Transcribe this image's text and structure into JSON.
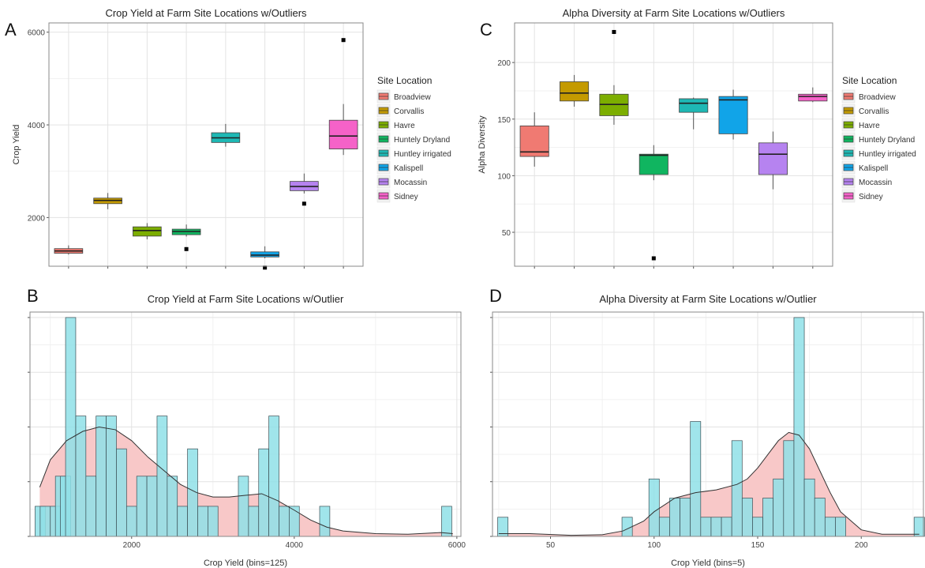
{
  "panel_labels": [
    "A",
    "C",
    "B",
    "D"
  ],
  "legend_title": "Site Location",
  "site_colors": {
    "Broadview": "#f07a72",
    "Corvallis": "#c49a00",
    "Havre": "#7cae00",
    "Huntely Dryland": "#10b560",
    "Huntley irrigated": "#1eb8b4",
    "Kalispell": "#11a4e8",
    "Mocassin": "#b683f0",
    "Sidney": "#f562c8"
  },
  "hist_fill": "#8fe0e8",
  "density_fill": "#f8c8c8",
  "chart_data": [
    {
      "id": "A",
      "type": "box",
      "title": "Crop Yield at Farm Site Locations w/Outliers",
      "xlabel": "",
      "ylabel": "Crop Yield",
      "ylim": [
        950,
        6200
      ],
      "yticks": [
        2000,
        4000,
        6000
      ],
      "grid": true,
      "legend": "right",
      "categories": [
        "Broadview",
        "Corvallis",
        "Havre",
        "Huntely Dryland",
        "Huntley irrigated",
        "Kalispell",
        "Mocassin",
        "Sidney"
      ],
      "boxes": [
        {
          "name": "Broadview",
          "whislo": 1200,
          "q1": 1230,
          "med": 1280,
          "q3": 1330,
          "whishi": 1400,
          "fliers": []
        },
        {
          "name": "Corvallis",
          "whislo": 2180,
          "q1": 2300,
          "med": 2370,
          "q3": 2420,
          "whishi": 2530,
          "fliers": []
        },
        {
          "name": "Havre",
          "whislo": 1530,
          "q1": 1600,
          "med": 1720,
          "q3": 1800,
          "whishi": 1880,
          "fliers": []
        },
        {
          "name": "Huntely Dryland",
          "whislo": 1590,
          "q1": 1630,
          "med": 1700,
          "q3": 1750,
          "whishi": 1850,
          "fliers": [
            1320
          ]
        },
        {
          "name": "Huntley irrigated",
          "whislo": 3530,
          "q1": 3620,
          "med": 3720,
          "q3": 3830,
          "whishi": 4020,
          "fliers": []
        },
        {
          "name": "Kalispell",
          "whislo": 1120,
          "q1": 1150,
          "med": 1190,
          "q3": 1260,
          "whishi": 1380,
          "fliers": [
            920
          ]
        },
        {
          "name": "Mocassin",
          "whislo": 2520,
          "q1": 2580,
          "med": 2670,
          "q3": 2780,
          "whishi": 2950,
          "fliers": [
            2300
          ]
        },
        {
          "name": "Sidney",
          "whislo": 3350,
          "q1": 3480,
          "med": 3760,
          "q3": 4100,
          "whishi": 4450,
          "fliers": [
            5830
          ]
        }
      ]
    },
    {
      "id": "C",
      "type": "box",
      "title": "Alpha Diversity at Farm Site Locations w/Outliers",
      "xlabel": "",
      "ylabel": "Alpha Diversity",
      "ylim": [
        20,
        235
      ],
      "yticks": [
        50,
        100,
        150,
        200
      ],
      "grid": true,
      "legend": "right",
      "categories": [
        "Broadview",
        "Corvallis",
        "Havre",
        "Huntely Dryland",
        "Huntley irrigated",
        "Kalispell",
        "Mocassin",
        "Sidney"
      ],
      "boxes": [
        {
          "name": "Broadview",
          "whislo": 108,
          "q1": 117,
          "med": 121,
          "q3": 144,
          "whishi": 156,
          "fliers": []
        },
        {
          "name": "Corvallis",
          "whislo": 161,
          "q1": 166,
          "med": 173,
          "q3": 183,
          "whishi": 189,
          "fliers": []
        },
        {
          "name": "Havre",
          "whislo": 145,
          "q1": 153,
          "med": 163,
          "q3": 172,
          "whishi": 180,
          "fliers": [
            227
          ]
        },
        {
          "name": "Huntely Dryland",
          "whislo": 96,
          "q1": 101,
          "med": 118,
          "q3": 119,
          "whishi": 127,
          "fliers": [
            27
          ]
        },
        {
          "name": "Huntley irrigated",
          "whislo": 141,
          "q1": 156,
          "med": 164,
          "q3": 168,
          "whishi": 169,
          "fliers": []
        },
        {
          "name": "Kalispell",
          "whislo": 132,
          "q1": 137,
          "med": 167,
          "q3": 170,
          "whishi": 176,
          "fliers": []
        },
        {
          "name": "Mocassin",
          "whislo": 88,
          "q1": 101,
          "med": 119,
          "q3": 129,
          "whishi": 139,
          "fliers": []
        },
        {
          "name": "Sidney",
          "whislo": 165,
          "q1": 166,
          "med": 170,
          "q3": 172,
          "whishi": 178,
          "fliers": []
        }
      ]
    },
    {
      "id": "B",
      "type": "histogram",
      "title": "Crop Yield at Farm Site Locations w/Outlier",
      "xlabel": "Crop Yield (bins=125)",
      "ylabel": "",
      "xlim": [
        750,
        6050
      ],
      "ylim": [
        0,
        4.1
      ],
      "xticks": [
        2000,
        4000,
        6000
      ],
      "yticks": [
        0,
        1,
        2,
        3,
        4
      ],
      "show_ytick_labels": false,
      "grid": true,
      "bin_width": 125,
      "bins": [
        {
          "x": 875,
          "count": 0.55
        },
        {
          "x": 937.5,
          "count": 0.55
        },
        {
          "x": 1062.5,
          "count": 0.55
        },
        {
          "x": 1125,
          "count": 1.1
        },
        {
          "x": 1187.5,
          "count": 1.1
        },
        {
          "x": 1250,
          "count": 4
        },
        {
          "x": 1375,
          "count": 2.2
        },
        {
          "x": 1500,
          "count": 1.1
        },
        {
          "x": 1625,
          "count": 2.2
        },
        {
          "x": 1750,
          "count": 2.2
        },
        {
          "x": 1875,
          "count": 1.6
        },
        {
          "x": 2000,
          "count": 0.55
        },
        {
          "x": 2125,
          "count": 1.1
        },
        {
          "x": 2250,
          "count": 1.1
        },
        {
          "x": 2375,
          "count": 2.2
        },
        {
          "x": 2500,
          "count": 1.1
        },
        {
          "x": 2625,
          "count": 0.55
        },
        {
          "x": 2750,
          "count": 1.6
        },
        {
          "x": 2875,
          "count": 0.55
        },
        {
          "x": 3000,
          "count": 0.55
        },
        {
          "x": 3375,
          "count": 1.1
        },
        {
          "x": 3500,
          "count": 0.55
        },
        {
          "x": 3625,
          "count": 1.6
        },
        {
          "x": 3750,
          "count": 2.2
        },
        {
          "x": 3875,
          "count": 0.55
        },
        {
          "x": 4000,
          "count": 0.55
        },
        {
          "x": 4375,
          "count": 0.55
        },
        {
          "x": 5875,
          "count": 0.55
        }
      ],
      "density": {
        "x": [
          870,
          1000,
          1200,
          1400,
          1600,
          1800,
          2000,
          2200,
          2400,
          2600,
          2800,
          3000,
          3200,
          3400,
          3600,
          3800,
          4000,
          4200,
          4400,
          4600,
          5000,
          5400,
          5800,
          5950
        ],
        "y": [
          0.9,
          1.4,
          1.75,
          1.92,
          2.0,
          1.95,
          1.75,
          1.45,
          1.2,
          0.95,
          0.8,
          0.72,
          0.72,
          0.75,
          0.78,
          0.65,
          0.48,
          0.3,
          0.17,
          0.1,
          0.05,
          0.04,
          0.07,
          0.05
        ]
      }
    },
    {
      "id": "D",
      "type": "histogram",
      "title": "Alpha Diversity at Farm Site Locations w/Outlier",
      "xlabel": "Crop Yield (bins=5)",
      "ylabel": "",
      "xlim": [
        22,
        230
      ],
      "ylim": [
        0,
        4.1
      ],
      "xticks": [
        50,
        100,
        150,
        200
      ],
      "yticks": [
        0,
        1,
        2,
        3,
        4
      ],
      "show_ytick_labels": false,
      "grid": true,
      "bin_width": 5,
      "bins": [
        {
          "x": 27,
          "count": 0.35
        },
        {
          "x": 87,
          "count": 0.35
        },
        {
          "x": 100,
          "count": 1.05
        },
        {
          "x": 105,
          "count": 0.35
        },
        {
          "x": 110,
          "count": 0.7
        },
        {
          "x": 115,
          "count": 0.7
        },
        {
          "x": 120,
          "count": 2.1
        },
        {
          "x": 125,
          "count": 0.35
        },
        {
          "x": 130,
          "count": 0.35
        },
        {
          "x": 135,
          "count": 0.35
        },
        {
          "x": 140,
          "count": 1.75
        },
        {
          "x": 145,
          "count": 0.7
        },
        {
          "x": 150,
          "count": 0.35
        },
        {
          "x": 155,
          "count": 0.7
        },
        {
          "x": 160,
          "count": 1.05
        },
        {
          "x": 165,
          "count": 1.75
        },
        {
          "x": 170,
          "count": 4
        },
        {
          "x": 175,
          "count": 1.05
        },
        {
          "x": 180,
          "count": 0.7
        },
        {
          "x": 185,
          "count": 0.35
        },
        {
          "x": 190,
          "count": 0.35
        },
        {
          "x": 228,
          "count": 0.35
        }
      ],
      "density": {
        "x": [
          25,
          40,
          60,
          75,
          85,
          95,
          100,
          110,
          120,
          130,
          140,
          145,
          150,
          155,
          160,
          165,
          170,
          175,
          180,
          185,
          190,
          200,
          210,
          228
        ],
        "y": [
          0.05,
          0.05,
          0.02,
          0.03,
          0.1,
          0.28,
          0.45,
          0.7,
          0.8,
          0.85,
          0.95,
          1.05,
          1.25,
          1.5,
          1.75,
          1.9,
          1.85,
          1.6,
          1.2,
          0.8,
          0.45,
          0.12,
          0.04,
          0.04
        ]
      }
    }
  ]
}
